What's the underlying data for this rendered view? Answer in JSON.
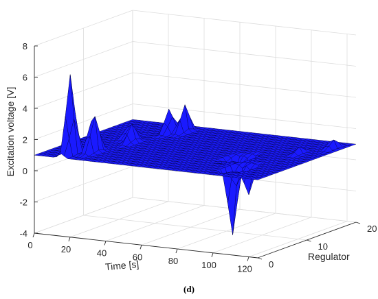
{
  "chart_data": {
    "type": "surface",
    "caption": "(d)",
    "xlabel": "Time [s]",
    "ylabel": "Regulator",
    "zlabel": "Excitation voltage [V]",
    "x_ticks": [
      "0",
      "20",
      "40",
      "60",
      "80",
      "100",
      "120"
    ],
    "y_ticks": [
      "0",
      "10",
      "20"
    ],
    "z_ticks": [
      "-4",
      "-2",
      "0",
      "2",
      "4",
      "6",
      "8"
    ],
    "xlim": [
      0,
      125
    ],
    "ylim": [
      0,
      20
    ],
    "zlim": [
      -4,
      8
    ],
    "grid": true,
    "surface_color": "#1a1aff",
    "edge_color": "#000033",
    "baseline_voltage": 1.0,
    "features": [
      {
        "t": 15,
        "regulator": 2,
        "value": 6.4
      },
      {
        "t": 22,
        "regulator": 4,
        "value": 4.0
      },
      {
        "t": 27,
        "regulator": 10,
        "value": 2.2
      },
      {
        "t": 32,
        "regulator": 16,
        "value": 2.8
      },
      {
        "t": 37,
        "regulator": 17,
        "value": 2.9
      },
      {
        "t": 20,
        "regulator": 12,
        "value": 2.0
      },
      {
        "t": 88,
        "regulator": 8,
        "value": -1.0
      },
      {
        "t": 94,
        "regulator": 9,
        "value": -0.9
      },
      {
        "t": 100,
        "regulator": 4,
        "value": -3.3
      },
      {
        "t": 106,
        "regulator": 5,
        "value": -0.8
      },
      {
        "t": 112,
        "regulator": 13,
        "value": 1.5
      },
      {
        "t": 120,
        "regulator": 17,
        "value": 1.7
      }
    ]
  }
}
